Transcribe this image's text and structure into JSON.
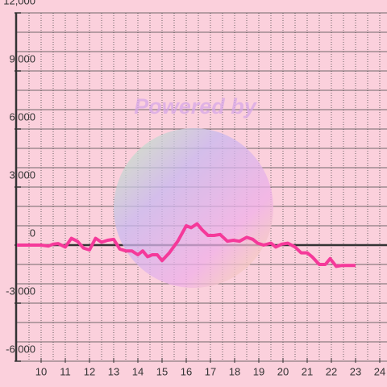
{
  "chart_data": {
    "type": "line",
    "watermark": "Powered by",
    "x": [
      9.0,
      10.0,
      10.3,
      10.5,
      10.7,
      11.0,
      11.25,
      11.5,
      11.75,
      12.0,
      12.25,
      12.5,
      12.75,
      13.0,
      13.25,
      13.5,
      13.75,
      14.0,
      14.2,
      14.4,
      14.6,
      14.8,
      15.0,
      15.3,
      15.65,
      16.0,
      16.2,
      16.45,
      16.65,
      16.9,
      17.15,
      17.4,
      17.7,
      17.95,
      18.2,
      18.5,
      18.75,
      18.95,
      19.2,
      19.5,
      19.7,
      19.95,
      20.2,
      20.5,
      20.75,
      21.0,
      21.2,
      21.5,
      21.75,
      21.95,
      22.2,
      22.45,
      22.7,
      23.0
    ],
    "series": [
      {
        "color": "#f5399a",
        "values": [
          0,
          0,
          -50,
          50,
          80,
          -100,
          350,
          200,
          -150,
          -250,
          350,
          150,
          250,
          300,
          -200,
          -300,
          -300,
          -500,
          -300,
          -600,
          -500,
          -500,
          -800,
          -400,
          200,
          1000,
          900,
          1100,
          800,
          500,
          500,
          550,
          200,
          250,
          200,
          400,
          300,
          100,
          0,
          100,
          -100,
          50,
          100,
          -100,
          -400,
          -400,
          -600,
          -1000,
          -1000,
          -700,
          -1100,
          -1050,
          -1050,
          -1050
        ]
      }
    ],
    "xlim": [
      9,
      24.3
    ],
    "ylim": [
      -6000,
      12000
    ],
    "xticks": [
      10,
      11,
      12,
      13,
      14,
      15,
      16,
      17,
      18,
      19,
      20,
      21,
      22,
      23,
      24
    ],
    "yticks": [
      {
        "value": -6000,
        "label": "-6,000"
      },
      {
        "value": -3000,
        "label": "-3,000"
      },
      0,
      {
        "value": 3000,
        "label": "3,000"
      },
      {
        "value": 6000,
        "label": "6,000"
      },
      {
        "value": 9000,
        "label": "9,000"
      },
      {
        "value": 12000,
        "label": "12,000"
      }
    ],
    "ygrid": [
      -6000,
      -5000,
      -4000,
      -3000,
      -2000,
      -1000,
      0,
      1000,
      2000,
      3000,
      4000,
      5000,
      6000,
      7000,
      8000,
      9000,
      10000,
      11000,
      12000
    ],
    "xgrid": [
      9.5,
      10,
      10.5,
      11,
      11.5,
      12,
      12.5,
      13,
      13.5,
      14,
      14.5,
      15,
      15.5,
      16,
      16.5,
      17,
      17.5,
      18,
      18.5,
      19,
      19.5,
      20,
      20.5,
      21,
      21.5,
      22,
      22.5,
      23,
      23.5,
      24
    ],
    "grid": true
  }
}
